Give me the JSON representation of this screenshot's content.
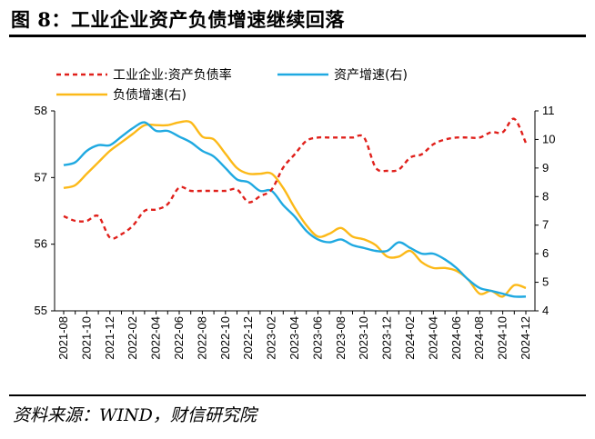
{
  "figure": {
    "title": "图 8：工业企业资产负债增速继续回落",
    "source": "资料来源：WIND，财信研究院"
  },
  "chart_data": {
    "type": "line",
    "x": [
      "2021-08",
      "2021-09",
      "2021-10",
      "2021-11",
      "2021-12",
      "2022-01",
      "2022-02",
      "2022-03",
      "2022-04",
      "2022-05",
      "2022-06",
      "2022-07",
      "2022-08",
      "2022-09",
      "2022-10",
      "2022-11",
      "2022-12",
      "2023-01",
      "2023-02",
      "2023-03",
      "2023-04",
      "2023-05",
      "2023-06",
      "2023-07",
      "2023-08",
      "2023-09",
      "2023-10",
      "2023-11",
      "2023-12",
      "2024-01",
      "2024-02",
      "2024-03",
      "2024-04",
      "2024-05",
      "2024-06",
      "2024-07",
      "2024-08",
      "2024-09",
      "2024-10",
      "2024-11",
      "2024-12"
    ],
    "xticks": [
      "2021-08",
      "2021-10",
      "2021-12",
      "2022-02",
      "2022-04",
      "2022-06",
      "2022-08",
      "2022-10",
      "2022-12",
      "2023-02",
      "2023-04",
      "2023-06",
      "2023-08",
      "2023-10",
      "2023-12",
      "2024-02",
      "2024-04",
      "2024-06",
      "2024-08",
      "2024-10",
      "2024-12"
    ],
    "y_left": {
      "ylim": [
        55,
        58
      ],
      "ticks": [
        "55",
        "56",
        "57",
        "58"
      ]
    },
    "y_right": {
      "ylim": [
        4,
        11
      ],
      "ticks": [
        "4",
        "5",
        "6",
        "7",
        "8",
        "9",
        "10",
        "11"
      ]
    },
    "series": [
      {
        "name": "工业企业:资产负债率",
        "axis": "left",
        "style": "dashed",
        "color": "#e0201b",
        "values": [
          56.42,
          56.35,
          56.35,
          56.42,
          56.1,
          56.15,
          56.28,
          56.5,
          56.52,
          56.6,
          56.85,
          56.8,
          56.8,
          56.8,
          56.8,
          56.82,
          56.63,
          56.72,
          56.82,
          57.15,
          57.35,
          57.55,
          57.6,
          57.6,
          57.6,
          57.6,
          57.6,
          57.15,
          57.1,
          57.12,
          57.3,
          57.35,
          57.5,
          57.57,
          57.6,
          57.6,
          57.6,
          57.68,
          57.68,
          57.88,
          57.52
        ]
      },
      {
        "name": "资产增速(右)",
        "axis": "right",
        "style": "solid",
        "color": "#1fa9e1",
        "values": [
          9.1,
          9.2,
          9.6,
          9.8,
          9.8,
          10.1,
          10.4,
          10.6,
          10.3,
          10.3,
          10.1,
          9.9,
          9.6,
          9.4,
          9.0,
          8.6,
          8.5,
          8.2,
          8.2,
          7.7,
          7.3,
          6.8,
          6.5,
          6.4,
          6.5,
          6.3,
          6.2,
          6.1,
          6.1,
          6.4,
          6.2,
          6.0,
          6.0,
          5.8,
          5.5,
          5.1,
          4.8,
          4.7,
          4.6,
          4.5,
          4.5
        ]
      },
      {
        "name": "负债增速(右)",
        "axis": "right",
        "style": "solid",
        "color": "#fcb918",
        "values": [
          8.3,
          8.4,
          8.8,
          9.2,
          9.6,
          9.9,
          10.2,
          10.5,
          10.5,
          10.5,
          10.6,
          10.6,
          10.1,
          10.0,
          9.5,
          9.0,
          8.8,
          8.8,
          8.8,
          8.3,
          7.6,
          7.0,
          6.6,
          6.7,
          6.9,
          6.6,
          6.5,
          6.3,
          5.9,
          5.9,
          6.1,
          5.7,
          5.5,
          5.5,
          5.4,
          5.1,
          4.6,
          4.7,
          4.5,
          4.9,
          4.8
        ]
      }
    ]
  }
}
